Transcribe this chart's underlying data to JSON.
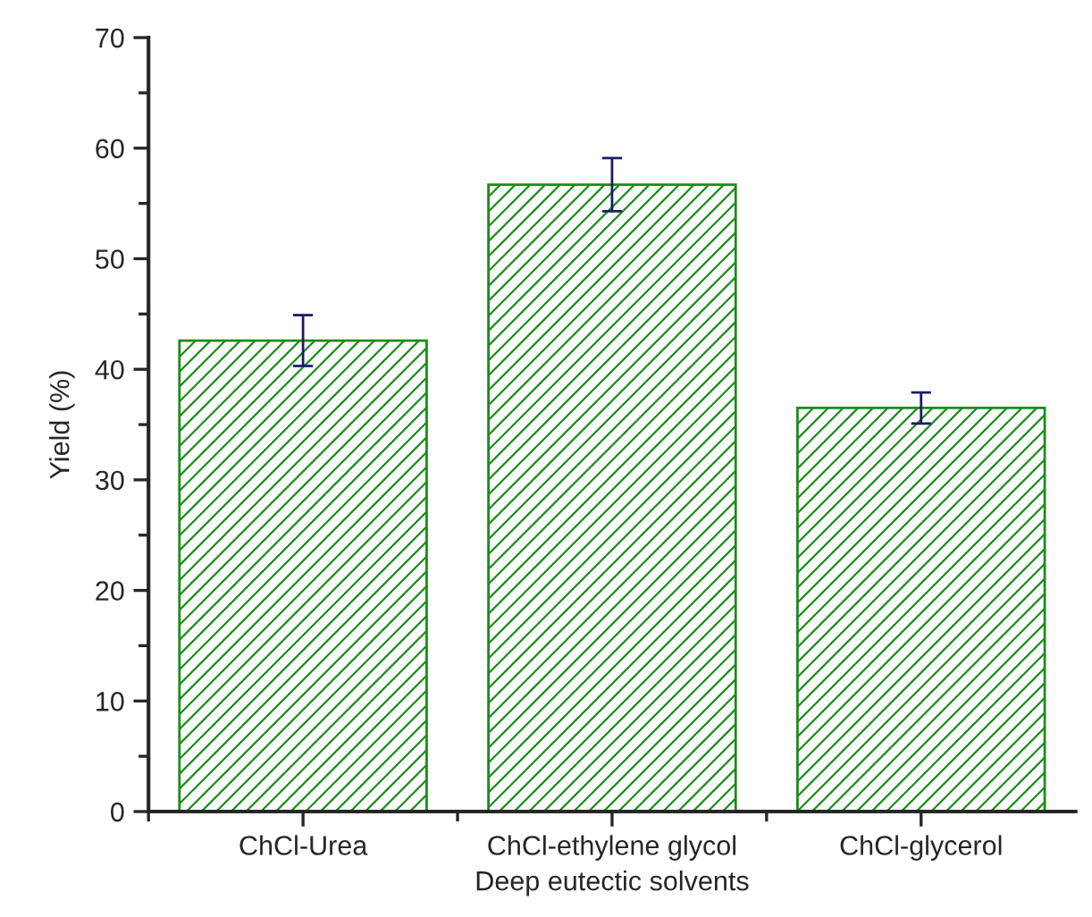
{
  "chart_data": {
    "type": "bar",
    "xlabel": "Deep eutectic solvents",
    "ylabel": "Yield (%)",
    "categories": [
      "ChCl-Urea",
      "ChCl-ethylene glycol",
      "ChCl-glycerol"
    ],
    "values": [
      42.6,
      56.7,
      36.5
    ],
    "errors": [
      2.3,
      2.4,
      1.4
    ],
    "color": "#1a8c1a",
    "ylim": [
      0,
      70
    ],
    "yticks": [
      0,
      10,
      20,
      30,
      40,
      50,
      60,
      70
    ],
    "grid": false
  }
}
